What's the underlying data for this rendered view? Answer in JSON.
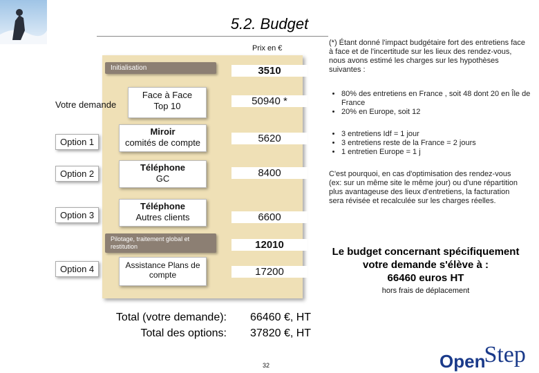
{
  "title": "5.2. Budget",
  "prix_header": "Prix en €",
  "rows": [
    {
      "pill": "Initialisation",
      "price": "3510"
    },
    {
      "label": "Votre demande",
      "item_line1": "Face à Face",
      "item_line2": "Top 10",
      "price": "50940 *"
    },
    {
      "label": "Option 1",
      "item_line1": "Miroir",
      "item_line2": "comités de compte",
      "price": "5620"
    },
    {
      "label": "Option 2",
      "item_line1": "Téléphone",
      "item_line2": "GC",
      "price": "8400"
    },
    {
      "label": "Option 3",
      "item_line1": "Téléphone",
      "item_line2": "Autres clients",
      "price": "6600"
    },
    {
      "pill": "Pilotage, traitement global et restitution",
      "price": "12010"
    },
    {
      "label": "Option 4",
      "item_line1": "Assistance Plans de",
      "item_line2": "compte",
      "price": "17200"
    }
  ],
  "totals": {
    "label_demande": "Total (votre demande):",
    "label_options": "Total des options:",
    "value_demande": "66460 €, HT",
    "value_options": "37820 €, HT"
  },
  "note": "(*) Étant donné l'impact budgétaire fort des entretiens face à face et de l'incertitude sur les lieux des rendez-vous, nous avons estimé les charges sur les hypothèses suivantes :",
  "bullets_1": [
    "80% des entretiens en France , soit 48 dont 20 en Île de France",
    "20% en Europe, soit 12"
  ],
  "bullets_2": [
    "3 entretiens Idf = 1 jour",
    "3 entretiens reste de la France = 2 jours",
    "1 entretien Europe = 1 j"
  ],
  "paragraph": "C'est pourquoi, en cas d'optimisation des rendez-vous (ex: sur un même site le même jour) ou d'une répartition plus avantageuse des lieux d'entretiens, la facturation sera révisée et recalculée sur les charges réelles.",
  "summary_line1": "Le budget concernant spécifiquement",
  "summary_line2": "votre demande s'élève à :",
  "summary_line3": "66460 euros HT",
  "summary_sub": "hors frais de déplacement",
  "page_number": "32",
  "logo_text_1": "Open",
  "logo_text_2": "Step",
  "colors": {
    "panel": "#efe0b6",
    "pill": "#8c7f73",
    "logo": "#1a3a8a"
  }
}
